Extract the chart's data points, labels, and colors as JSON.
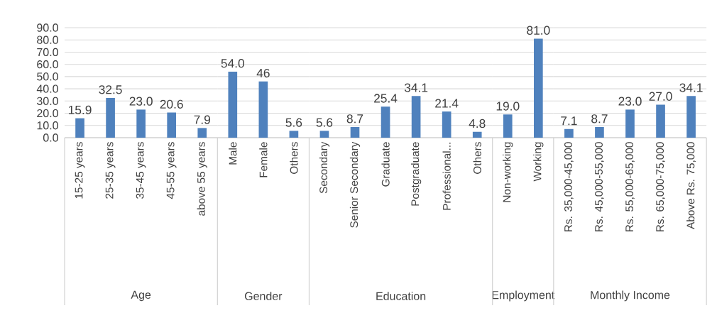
{
  "chart_data": [
    {
      "type": "bar",
      "xlabel": "Age",
      "categories": [
        "15-25 years",
        "25-35 years",
        "35-45 years",
        "45-55 years",
        "above 55 years"
      ],
      "values": [
        15.9,
        32.5,
        23.0,
        20.6,
        7.9
      ],
      "value_labels": [
        "15.9",
        "32.5",
        "23.0",
        "20.6",
        "7.9"
      ],
      "color": "#4f81bd",
      "ylim": [
        0,
        90
      ],
      "yticks": [
        {
          "value": 0,
          "label": "0.0"
        },
        {
          "value": 10,
          "label": "10.0"
        },
        {
          "value": 20,
          "label": "20.0"
        },
        {
          "value": 30,
          "label": "30.0"
        },
        {
          "value": 40,
          "label": "40.0"
        },
        {
          "value": 50,
          "label": "50.0"
        },
        {
          "value": 60,
          "label": "60.0"
        },
        {
          "value": 70,
          "label": "70.0"
        },
        {
          "value": 80,
          "label": "80.0"
        },
        {
          "value": 90,
          "label": "90.0"
        }
      ],
      "grid": "y"
    },
    {
      "type": "bar",
      "xlabel": "Gender",
      "categories": [
        "Male",
        "Female",
        "Others"
      ],
      "values": [
        54.0,
        46,
        5.6
      ],
      "value_labels": [
        "54.0",
        "46",
        "5.6"
      ],
      "color": "#4f81bd",
      "ylim": [
        0,
        90
      ],
      "yticks": [
        0,
        10,
        20,
        30,
        40,
        50,
        60,
        70,
        80,
        90
      ],
      "grid": "y",
      "tick_labels": "x"
    },
    {
      "type": "bar",
      "xlabel": "Education",
      "categories": [
        "Secondary",
        "Senior Secondary",
        "Graduate",
        "Postgraduate",
        "Professional...",
        "Others"
      ],
      "values": [
        5.6,
        8.7,
        25.4,
        34.1,
        21.4,
        4.8
      ],
      "value_labels": [
        "5.6",
        "8.7",
        "25.4",
        "34.1",
        "21.4",
        "4.8"
      ],
      "color": "#4f81bd",
      "ylim": [
        0,
        90
      ],
      "yticks": [
        0,
        10,
        20,
        30,
        40,
        50,
        60,
        70,
        80,
        90
      ],
      "grid": "y",
      "tick_labels": "x"
    },
    {
      "type": "bar",
      "xlabel": "Employment",
      "categories": [
        "Non-working",
        "Working"
      ],
      "values": [
        19.0,
        81.0
      ],
      "value_labels": [
        "19.0",
        "81.0"
      ],
      "color": "#4f81bd",
      "ylim": [
        0,
        90
      ],
      "yticks": [
        0,
        10,
        20,
        30,
        40,
        50,
        60,
        70,
        80,
        90
      ],
      "grid": "y",
      "tick_labels": "x"
    },
    {
      "type": "bar",
      "xlabel": "Monthly Income",
      "categories": [
        "Rs. 35,000-45,000",
        "Rs. 45,000-55,000",
        "Rs. 55,000-65,000",
        "Rs. 65,000-75,000",
        "Above Rs. 75,000"
      ],
      "values": [
        7.1,
        8.7,
        23.0,
        27.0,
        34.1
      ],
      "value_labels": [
        "7.1",
        "8.7",
        "23.0",
        "27.0",
        "34.1"
      ],
      "color": "#4f81bd",
      "ylim": [
        0,
        90
      ],
      "yticks": [
        0,
        10,
        20,
        30,
        40,
        50,
        60,
        70,
        80,
        90
      ],
      "grid": "y",
      "tick_labels": "x"
    }
  ]
}
